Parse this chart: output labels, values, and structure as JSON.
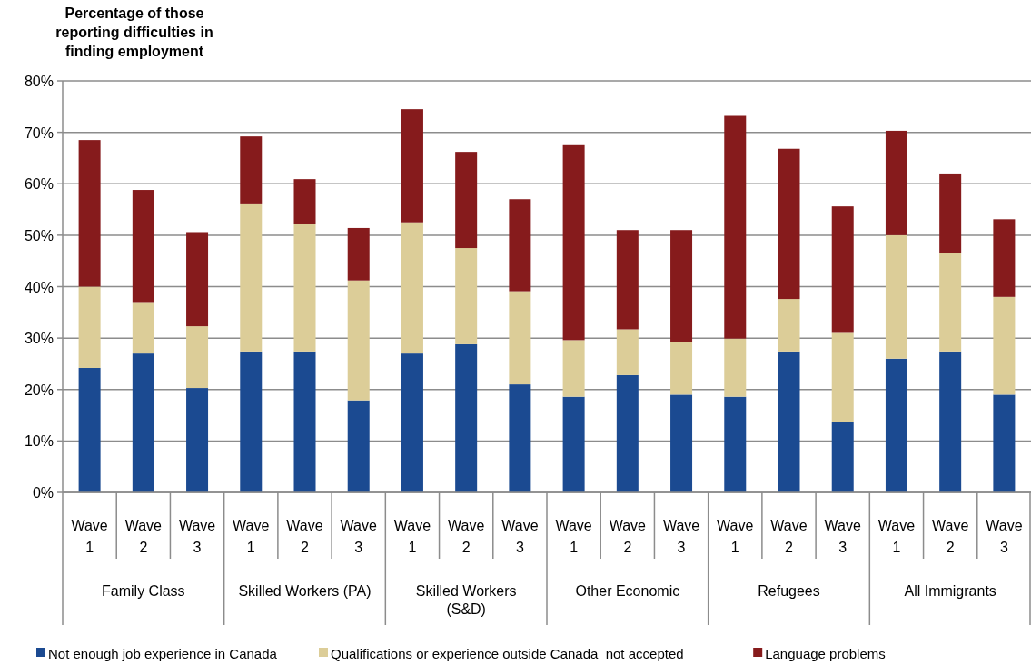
{
  "chart_data": {
    "type": "bar",
    "stacked": true,
    "ylabel": "Percentage of those reporting difficulties in finding employment",
    "categories": [
      "Wave 1",
      "Wave 2",
      "Wave 3",
      "Wave 1",
      "Wave 2",
      "Wave 3",
      "Wave 1",
      "Wave 2",
      "Wave 3",
      "Wave 1",
      "Wave 2",
      "Wave 3",
      "Wave 1",
      "Wave 2",
      "Wave 3",
      "Wave 1",
      "Wave 2",
      "Wave 3"
    ],
    "annotations": [
      "Family Class",
      "Skilled Workers (PA)",
      "Skilled Workers (S&D)",
      "Other Economic",
      "Refugees",
      "All Immigrants"
    ],
    "series": [
      {
        "name": "Not enough job experience in Canada",
        "color": "#1b4a91",
        "values": [
          24.2,
          27,
          20.3,
          27.4,
          27.4,
          17.9,
          27,
          28.8,
          21,
          18.6,
          22.8,
          19,
          18.6,
          27.4,
          13.7,
          26,
          27.4,
          19
        ]
      },
      {
        "name": "Qualifications or experience outside Canada  not accepted",
        "color": "#dccd98",
        "values": [
          15.8,
          10,
          12,
          28.6,
          24.7,
          23.3,
          25.5,
          18.7,
          18.1,
          11,
          8.9,
          10.2,
          11.3,
          10.2,
          17.3,
          24,
          19.1,
          19
        ]
      },
      {
        "name": "Language problems",
        "color": "#861b1c",
        "values": [
          28.5,
          21.8,
          18.3,
          13.2,
          8.8,
          10.2,
          22,
          18.7,
          17.9,
          37.9,
          19.3,
          21.8,
          43.3,
          29.2,
          24.6,
          20.3,
          15.5,
          15.1
        ]
      }
    ],
    "ylim": [
      0,
      80
    ],
    "yticks": [
      {
        "value": 0,
        "label": "0%"
      },
      {
        "value": 10,
        "label": "10%"
      },
      {
        "value": 20,
        "label": "20%"
      },
      {
        "value": 30,
        "label": "30%"
      },
      {
        "value": 40,
        "label": "40%"
      },
      {
        "value": 50,
        "label": "50%"
      },
      {
        "value": 60,
        "label": "60%"
      },
      {
        "value": 70,
        "label": "70%"
      },
      {
        "value": 80,
        "label": "80%"
      }
    ],
    "grid": "y",
    "legend": "bottom"
  }
}
